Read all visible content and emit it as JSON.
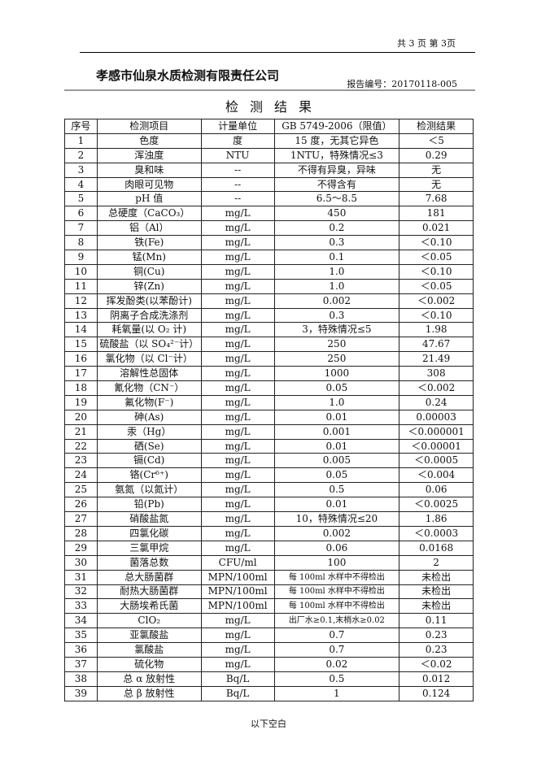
{
  "page_indicator": "共 3 页  第 3页",
  "company": "孝感市仙泉水质检测有限责任公司",
  "report_no": "报告编号：20170118-005",
  "title": "检测结果",
  "table": {
    "headers": [
      "序号",
      "检测项目",
      "计量单位",
      "GB 5749-2006（限值）",
      "检测结果"
    ],
    "rows": [
      [
        "1",
        "色度",
        "度",
        "15 度，无其它异色",
        "＜5"
      ],
      [
        "2",
        "浑浊度",
        "NTU",
        "1NTU，特殊情况≤3",
        "0.29"
      ],
      [
        "3",
        "臭和味",
        "--",
        "不得有异臭，异味",
        "无"
      ],
      [
        "4",
        "肉眼可见物",
        "--",
        "不得含有",
        "无"
      ],
      [
        "5",
        "pH 值",
        "--",
        "6.5～8.5",
        "7.68"
      ],
      [
        "6",
        "总硬度（CaCO₃）",
        "mg/L",
        "450",
        "181"
      ],
      [
        "7",
        "铝（Al）",
        "mg/L",
        "0.2",
        "0.021"
      ],
      [
        "8",
        "铁(Fe)",
        "mg/L",
        "0.3",
        "＜0.10"
      ],
      [
        "9",
        "锰(Mn)",
        "mg/L",
        "0.1",
        "＜0.05"
      ],
      [
        "10",
        "铜(Cu)",
        "mg/L",
        "1.0",
        "＜0.10"
      ],
      [
        "11",
        "锌(Zn)",
        "mg/L",
        "1.0",
        "＜0.05"
      ],
      [
        "12",
        "挥发酚类(以苯酚计)",
        "mg/L",
        "0.002",
        "＜0.002"
      ],
      [
        "13",
        "阴离子合成洗涤剂",
        "mg/L",
        "0.3",
        "＜0.10"
      ],
      [
        "14",
        "耗氧量(以 O₂ 计)",
        "mg/L",
        "3，特殊情况≤5",
        "1.98"
      ],
      [
        "15",
        "硫酸盐（以 SO₄²⁻计）",
        "mg/L",
        "250",
        "47.67"
      ],
      [
        "16",
        "氯化物（以 Cl⁻计）",
        "mg/L",
        "250",
        "21.49"
      ],
      [
        "17",
        "溶解性总固体",
        "mg/L",
        "1000",
        "308"
      ],
      [
        "18",
        "氰化物（CN⁻）",
        "mg/L",
        "0.05",
        "＜0.002"
      ],
      [
        "19",
        "氟化物(F⁻)",
        "mg/L",
        "1.0",
        "0.24"
      ],
      [
        "20",
        "砷(As)",
        "mg/L",
        "0.01",
        "0.00003"
      ],
      [
        "21",
        "汞（Hg）",
        "mg/L",
        "0.001",
        "＜0.000001"
      ],
      [
        "22",
        "硒(Se)",
        "mg/L",
        "0.01",
        "＜0.00001"
      ],
      [
        "23",
        "镉(Cd)",
        "mg/L",
        "0.005",
        "＜0.0005"
      ],
      [
        "24",
        "铬(Cr⁶⁺)",
        "mg/L",
        "0.05",
        "＜0.004"
      ],
      [
        "25",
        "氨氮（以氮计）",
        "mg/L",
        "0.5",
        "0.06"
      ],
      [
        "26",
        "铅(Pb)",
        "mg/L",
        "0.01",
        "＜0.0025"
      ],
      [
        "27",
        "硝酸盐氮",
        "mg/L",
        "10，特殊情况≤20",
        "1.86"
      ],
      [
        "28",
        "四氯化碳",
        "mg/L",
        "0.002",
        "＜0.0003"
      ],
      [
        "29",
        "三氯甲烷",
        "mg/L",
        "0.06",
        "0.0168"
      ],
      [
        "30",
        "菌落总数",
        "CFU/ml",
        "100",
        "2"
      ],
      [
        "31",
        "总大肠菌群",
        "MPN/100ml",
        "每 100ml 水样中不得检出",
        "未检出"
      ],
      [
        "32",
        "耐热大肠菌群",
        "MPN/100ml",
        "每 100ml 水样中不得检出",
        "未检出"
      ],
      [
        "33",
        "大肠埃希氏菌",
        "MPN/100ml",
        "每 100ml 水样中不得检出",
        "未检出"
      ],
      [
        "34",
        "ClO₂",
        "mg/L",
        "出厂水≥0.1,末梢水≥0.02",
        "0.11"
      ],
      [
        "35",
        "亚氯酸盐",
        "mg/L",
        "0.7",
        "0.23"
      ],
      [
        "36",
        "氯酸盐",
        "mg/L",
        "0.7",
        "0.23"
      ],
      [
        "37",
        "硫化物",
        "mg/L",
        "0.02",
        "＜0.02"
      ],
      [
        "38",
        "总 α 放射性",
        "Bq/L",
        "0.5",
        "0.012"
      ],
      [
        "39",
        "总 β 放射性",
        "Bq/L",
        "1",
        "0.124"
      ]
    ]
  },
  "footer": "以下空白"
}
